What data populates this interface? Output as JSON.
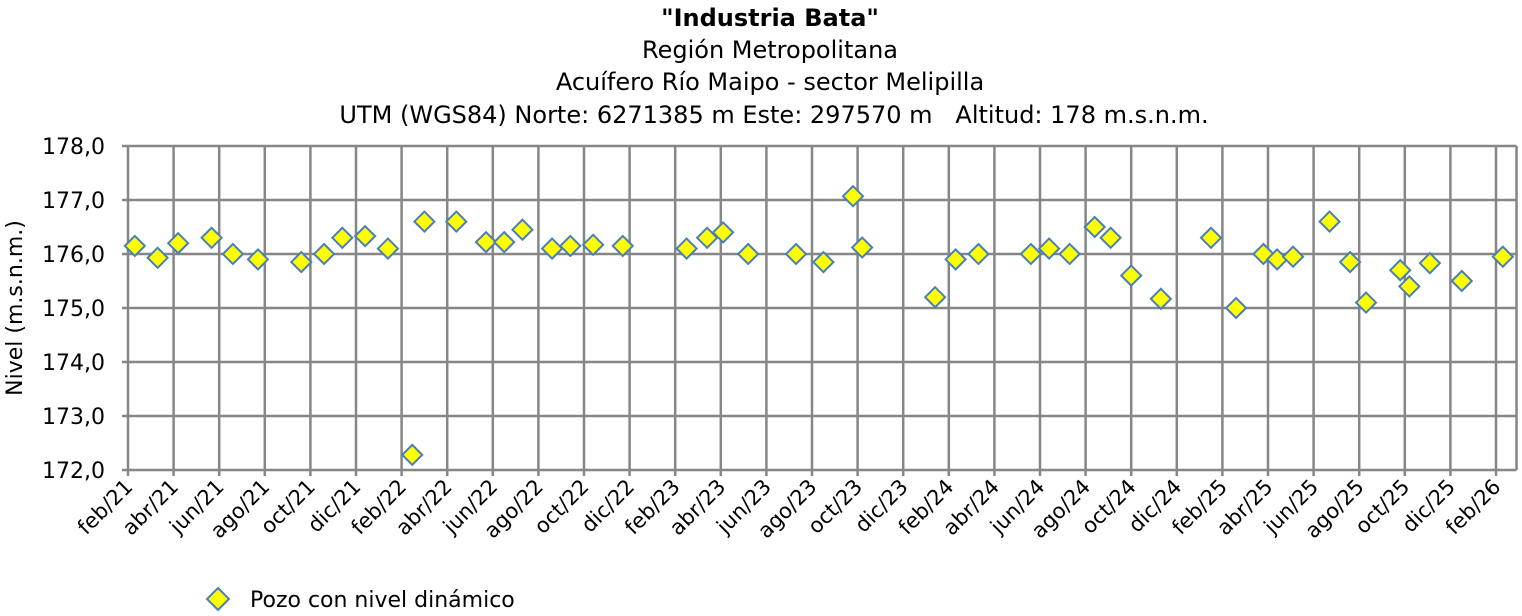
{
  "chart_data": {
    "type": "scatter",
    "title": "\"Industria Bata\"",
    "subtitle_lines": [
      "Región Metropolitana",
      "Acuífero Río Maipo - sector Melipilla",
      "UTM (WGS84) Norte: 6271385 m Este: 297570 m   Altitud: 178 m.s.n.m."
    ],
    "xlabel": "",
    "ylabel": "Nivel (m.s.n.m.)",
    "ylim": [
      172.0,
      178.0
    ],
    "yticks": [
      "178,0",
      "177,0",
      "176,0",
      "175,0",
      "174,0",
      "173,0",
      "172,0"
    ],
    "xticks": [
      "feb/21",
      "abr/21",
      "jun/21",
      "ago/21",
      "oct/21",
      "dic/21",
      "feb/22",
      "abr/22",
      "jun/22",
      "ago/22",
      "oct/22",
      "dic/22",
      "feb/23",
      "abr/23",
      "jun/23",
      "ago/23",
      "oct/23",
      "dic/23",
      "feb/24",
      "abr/24",
      "jun/24",
      "ago/24",
      "oct/24",
      "dic/24",
      "feb/25",
      "abr/25",
      "jun/25",
      "ago/25",
      "oct/25",
      "dic/25",
      "feb/26"
    ],
    "xlim": [
      "2021-02-01",
      "2026-02-28"
    ],
    "grid": true,
    "legend_position": "bottom-left",
    "colors": {
      "marker_fill": "#FFFF00",
      "marker_stroke": "#4A7EBB",
      "grid": "#868686"
    },
    "series": [
      {
        "name": "Pozo con nivel dinámico",
        "marker": "diamond",
        "points": [
          [
            "2021-02-10",
            176.15
          ],
          [
            "2021-03-10",
            175.93
          ],
          [
            "2021-04-07",
            176.2
          ],
          [
            "2021-05-21",
            176.3
          ],
          [
            "2021-06-19",
            176.0
          ],
          [
            "2021-07-22",
            175.9
          ],
          [
            "2021-09-19",
            175.85
          ],
          [
            "2021-10-19",
            176.0
          ],
          [
            "2021-11-13",
            176.3
          ],
          [
            "2021-12-13",
            176.33
          ],
          [
            "2022-01-13",
            176.1
          ],
          [
            "2022-02-15",
            172.28
          ],
          [
            "2022-03-01",
            176.6
          ],
          [
            "2022-04-13",
            176.6
          ],
          [
            "2022-05-22",
            176.22
          ],
          [
            "2022-06-16",
            176.22
          ],
          [
            "2022-07-10",
            176.45
          ],
          [
            "2022-08-19",
            176.1
          ],
          [
            "2022-09-13",
            176.15
          ],
          [
            "2022-10-13",
            176.17
          ],
          [
            "2022-11-22",
            176.15
          ],
          [
            "2023-02-16",
            176.1
          ],
          [
            "2023-03-13",
            176.3
          ],
          [
            "2023-04-04",
            176.4
          ],
          [
            "2023-05-07",
            176.0
          ],
          [
            "2023-07-10",
            176.0
          ],
          [
            "2023-08-16",
            175.85
          ],
          [
            "2023-09-25",
            177.07
          ],
          [
            "2023-10-07",
            176.12
          ],
          [
            "2024-01-13",
            175.2
          ],
          [
            "2024-02-10",
            175.9
          ],
          [
            "2024-03-10",
            176.0
          ],
          [
            "2024-05-19",
            176.0
          ],
          [
            "2024-06-13",
            176.1
          ],
          [
            "2024-07-10",
            176.0
          ],
          [
            "2024-08-13",
            176.5
          ],
          [
            "2024-09-04",
            176.3
          ],
          [
            "2024-10-01",
            175.6
          ],
          [
            "2024-11-10",
            175.17
          ],
          [
            "2025-01-16",
            176.3
          ],
          [
            "2025-02-19",
            175.0
          ],
          [
            "2025-03-25",
            176.0
          ],
          [
            "2025-04-13",
            175.9
          ],
          [
            "2025-05-04",
            175.95
          ],
          [
            "2025-06-22",
            176.6
          ],
          [
            "2025-07-19",
            175.85
          ],
          [
            "2025-08-10",
            175.1
          ],
          [
            "2025-09-25",
            175.7
          ],
          [
            "2025-10-07",
            175.4
          ],
          [
            "2025-11-04",
            175.83
          ],
          [
            "2025-12-16",
            175.5
          ],
          [
            "2026-02-10",
            175.95
          ]
        ]
      }
    ]
  }
}
